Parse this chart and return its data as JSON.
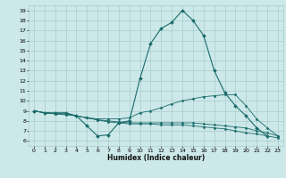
{
  "title": "",
  "xlabel": "Humidex (Indice chaleur)",
  "bg_color": "#cce8e8",
  "grid_color": "#aacccc",
  "line_color": "#1a6b6b",
  "xlim": [
    -0.5,
    23.5
  ],
  "ylim": [
    5.5,
    19.5
  ],
  "yticks": [
    6,
    7,
    8,
    9,
    10,
    11,
    12,
    13,
    14,
    15,
    16,
    17,
    18,
    19
  ],
  "xticks": [
    0,
    1,
    2,
    3,
    4,
    5,
    6,
    7,
    8,
    9,
    10,
    11,
    12,
    13,
    14,
    15,
    16,
    17,
    18,
    19,
    20,
    21,
    22,
    23
  ],
  "lines": [
    {
      "x": [
        0,
        1,
        2,
        3,
        4,
        5,
        6,
        7,
        8,
        9,
        10,
        11,
        12,
        13,
        14,
        15,
        16,
        17,
        18,
        19,
        20,
        21,
        22
      ],
      "y": [
        9,
        8.8,
        8.8,
        8.8,
        8.5,
        7.5,
        6.5,
        6.6,
        7.8,
        8.0,
        12.2,
        15.7,
        17.2,
        17.8,
        19.0,
        18.0,
        16.5,
        13.0,
        10.8,
        9.5,
        8.5,
        7.3,
        6.5
      ]
    },
    {
      "x": [
        0,
        1,
        2,
        3,
        4,
        5,
        6,
        7,
        8,
        9,
        10,
        11,
        12,
        13,
        14,
        15,
        16,
        17,
        18,
        19,
        20,
        21,
        22,
        23
      ],
      "y": [
        9,
        8.8,
        8.7,
        8.7,
        8.5,
        8.3,
        8.2,
        8.2,
        8.2,
        8.3,
        8.8,
        9.0,
        9.3,
        9.7,
        10.0,
        10.2,
        10.4,
        10.5,
        10.6,
        10.6,
        9.5,
        8.2,
        7.3,
        6.5
      ]
    },
    {
      "x": [
        0,
        1,
        2,
        3,
        4,
        5,
        6,
        7,
        8,
        9,
        10,
        11,
        12,
        13,
        14,
        15,
        16,
        17,
        18,
        19,
        20,
        21,
        22,
        23
      ],
      "y": [
        9,
        8.8,
        8.7,
        8.7,
        8.5,
        8.3,
        8.1,
        8.0,
        7.9,
        7.8,
        7.8,
        7.8,
        7.8,
        7.8,
        7.8,
        7.8,
        7.7,
        7.6,
        7.5,
        7.4,
        7.3,
        7.0,
        6.8,
        6.5
      ]
    },
    {
      "x": [
        0,
        1,
        2,
        3,
        4,
        5,
        6,
        7,
        8,
        9,
        10,
        11,
        12,
        13,
        14,
        15,
        16,
        17,
        18,
        19,
        20,
        21,
        22,
        23
      ],
      "y": [
        9,
        8.8,
        8.7,
        8.6,
        8.5,
        8.3,
        8.1,
        7.9,
        7.8,
        7.7,
        7.7,
        7.7,
        7.6,
        7.6,
        7.6,
        7.5,
        7.4,
        7.3,
        7.2,
        7.0,
        6.8,
        6.7,
        6.5,
        6.3
      ]
    }
  ]
}
